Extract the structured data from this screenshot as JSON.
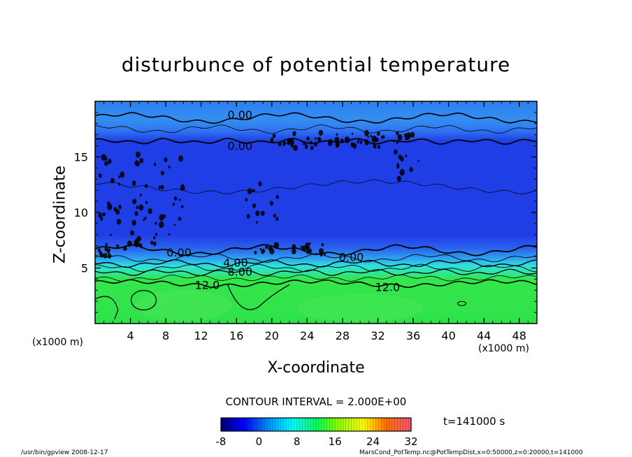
{
  "chart_data": {
    "type": "heatmap",
    "title": "disturbunce of potential temperature",
    "xlabel": "X-coordinate",
    "ylabel": "Z-coordinate",
    "x_unit_left": "(x1000 m)",
    "x_unit_right": "(x1000 m)",
    "xlim": [
      0,
      50
    ],
    "ylim": [
      0,
      20
    ],
    "x_ticks": [
      4,
      8,
      12,
      16,
      20,
      24,
      28,
      32,
      36,
      40,
      44,
      48
    ],
    "y_ticks": [
      5,
      10,
      15
    ],
    "contour_labels": [
      {
        "text": "0.00",
        "x": 16.4,
        "z": 18.8
      },
      {
        "text": "0.00",
        "x": 16.4,
        "z": 16.0
      },
      {
        "text": "0.00",
        "x": 9.5,
        "z": 6.4
      },
      {
        "text": "0.00",
        "x": 29.0,
        "z": 6.0
      },
      {
        "text": "4.00",
        "x": 15.9,
        "z": 5.5
      },
      {
        "text": "8.00",
        "x": 16.4,
        "z": 4.7
      },
      {
        "text": "12.0",
        "x": 12.7,
        "z": 3.5
      },
      {
        "text": "12.0",
        "x": 33.1,
        "z": 3.3
      }
    ],
    "contour_interval_label": "CONTOUR INTERVAL = 2.000E+00",
    "time_label": "t=141000 s",
    "colorbar": {
      "min": -8,
      "max": 32,
      "ticks": [
        "-8",
        "0",
        "8",
        "16",
        "24",
        "32"
      ]
    }
  },
  "footer": {
    "left": "/usr/bin/gpview  2008-12-17",
    "right": "MarsCond_PotTemp.nc@PotTempDist,x=0:50000,z=0:20000,t=141000"
  },
  "colors": {
    "deep_blue": "#1a30e8",
    "blue": "#2a62f5",
    "light_blue": "#3aa0f5",
    "cyan": "#2fe0e8",
    "green": "#2ee64c",
    "contour": "#000000"
  }
}
